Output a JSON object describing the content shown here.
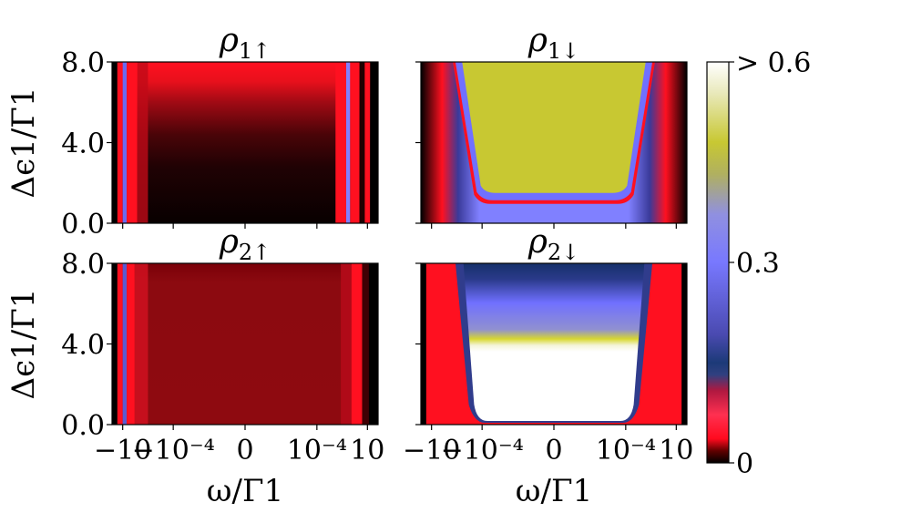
{
  "chart_data": {
    "type": "heatmap",
    "panels": [
      {
        "title": "ρ1↑",
        "main": "ρ",
        "sub": "1↑",
        "pattern": "up1"
      },
      {
        "title": "ρ1↓",
        "main": "ρ",
        "sub": "1↓",
        "pattern": "down1"
      },
      {
        "title": "ρ2↑",
        "main": "ρ",
        "sub": "2↑",
        "pattern": "up2"
      },
      {
        "title": "ρ2↓",
        "main": "ρ",
        "sub": "2↓",
        "pattern": "down2"
      }
    ],
    "xlabel": "ω/Γ1",
    "ylabel": "Δϵ1/Γ1",
    "x_scale": "symlog",
    "x_ticks": [
      -10,
      -0.0001,
      0,
      0.0001,
      10
    ],
    "x_tick_labels": [
      "−10",
      "−10⁻⁴",
      "0",
      "10⁻⁴",
      "10"
    ],
    "ylim": [
      0,
      8
    ],
    "y_ticks": [
      0,
      4,
      8
    ],
    "y_tick_labels": [
      "0.0",
      "4.0",
      "8.0"
    ],
    "colorbar": {
      "range": [
        0,
        0.6
      ],
      "tick_labels": [
        "0",
        "0.3",
        "> 0.6"
      ],
      "colormap": "gist_stern-like"
    },
    "colors": {
      "black": "#000000",
      "red": "#ff1020",
      "blue": "#7070ff",
      "yellow": "#c8c832",
      "white": "#ffffff"
    }
  }
}
